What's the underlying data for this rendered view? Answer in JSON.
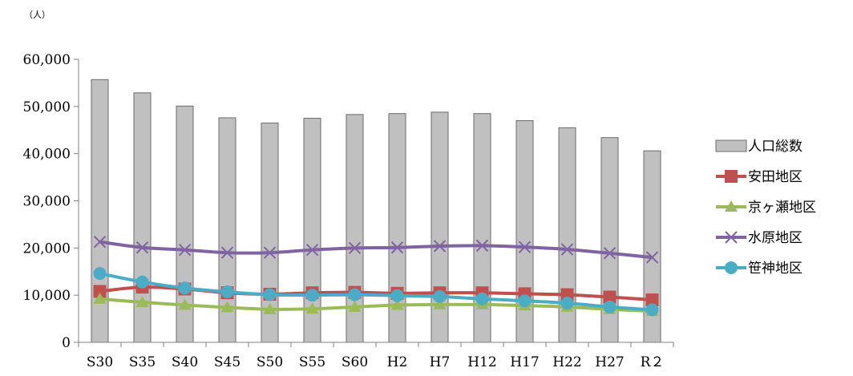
{
  "chart_data": {
    "type": "bar",
    "unit_label": "（人）",
    "categories": [
      "S30",
      "S35",
      "S40",
      "S45",
      "S50",
      "S55",
      "S60",
      "H2",
      "H7",
      "H12",
      "H17",
      "H22",
      "H27",
      "R２"
    ],
    "ylim": [
      0,
      60000
    ],
    "yticks": [
      0,
      10000,
      20000,
      30000,
      40000,
      50000,
      60000
    ],
    "ytick_labels": [
      "0",
      "10,000",
      "20,000",
      "30,000",
      "40,000",
      "50,000",
      "60,000"
    ],
    "grid": false,
    "legend_position": "right",
    "bar_series": {
      "name": "人口総数",
      "color": "#c0c0c0",
      "values": [
        55700,
        52900,
        50100,
        47600,
        46500,
        47500,
        48300,
        48500,
        48800,
        48500,
        47000,
        45500,
        43400,
        40600
      ]
    },
    "line_series": [
      {
        "name": "安田地区",
        "color": "#c0504d",
        "marker": "square",
        "values": [
          10800,
          11700,
          11300,
          10500,
          10200,
          10500,
          10600,
          10400,
          10500,
          10500,
          10300,
          10100,
          9600,
          9000
        ]
      },
      {
        "name": "京ヶ瀬地区",
        "color": "#9bbb59",
        "marker": "triangle",
        "values": [
          9200,
          8500,
          7900,
          7400,
          7000,
          7100,
          7500,
          7900,
          8000,
          8000,
          7800,
          7500,
          7000,
          6600
        ]
      },
      {
        "name": "水原地区",
        "color": "#8064a2",
        "marker": "x",
        "values": [
          21300,
          20100,
          19600,
          19000,
          19000,
          19600,
          20000,
          20100,
          20400,
          20500,
          20200,
          19700,
          18900,
          18000
        ]
      },
      {
        "name": "笹神地区",
        "color": "#4bacc6",
        "marker": "circle",
        "values": [
          14600,
          12800,
          11500,
          10700,
          10100,
          10000,
          10100,
          9900,
          9700,
          9200,
          8800,
          8300,
          7500,
          6900
        ]
      }
    ]
  }
}
